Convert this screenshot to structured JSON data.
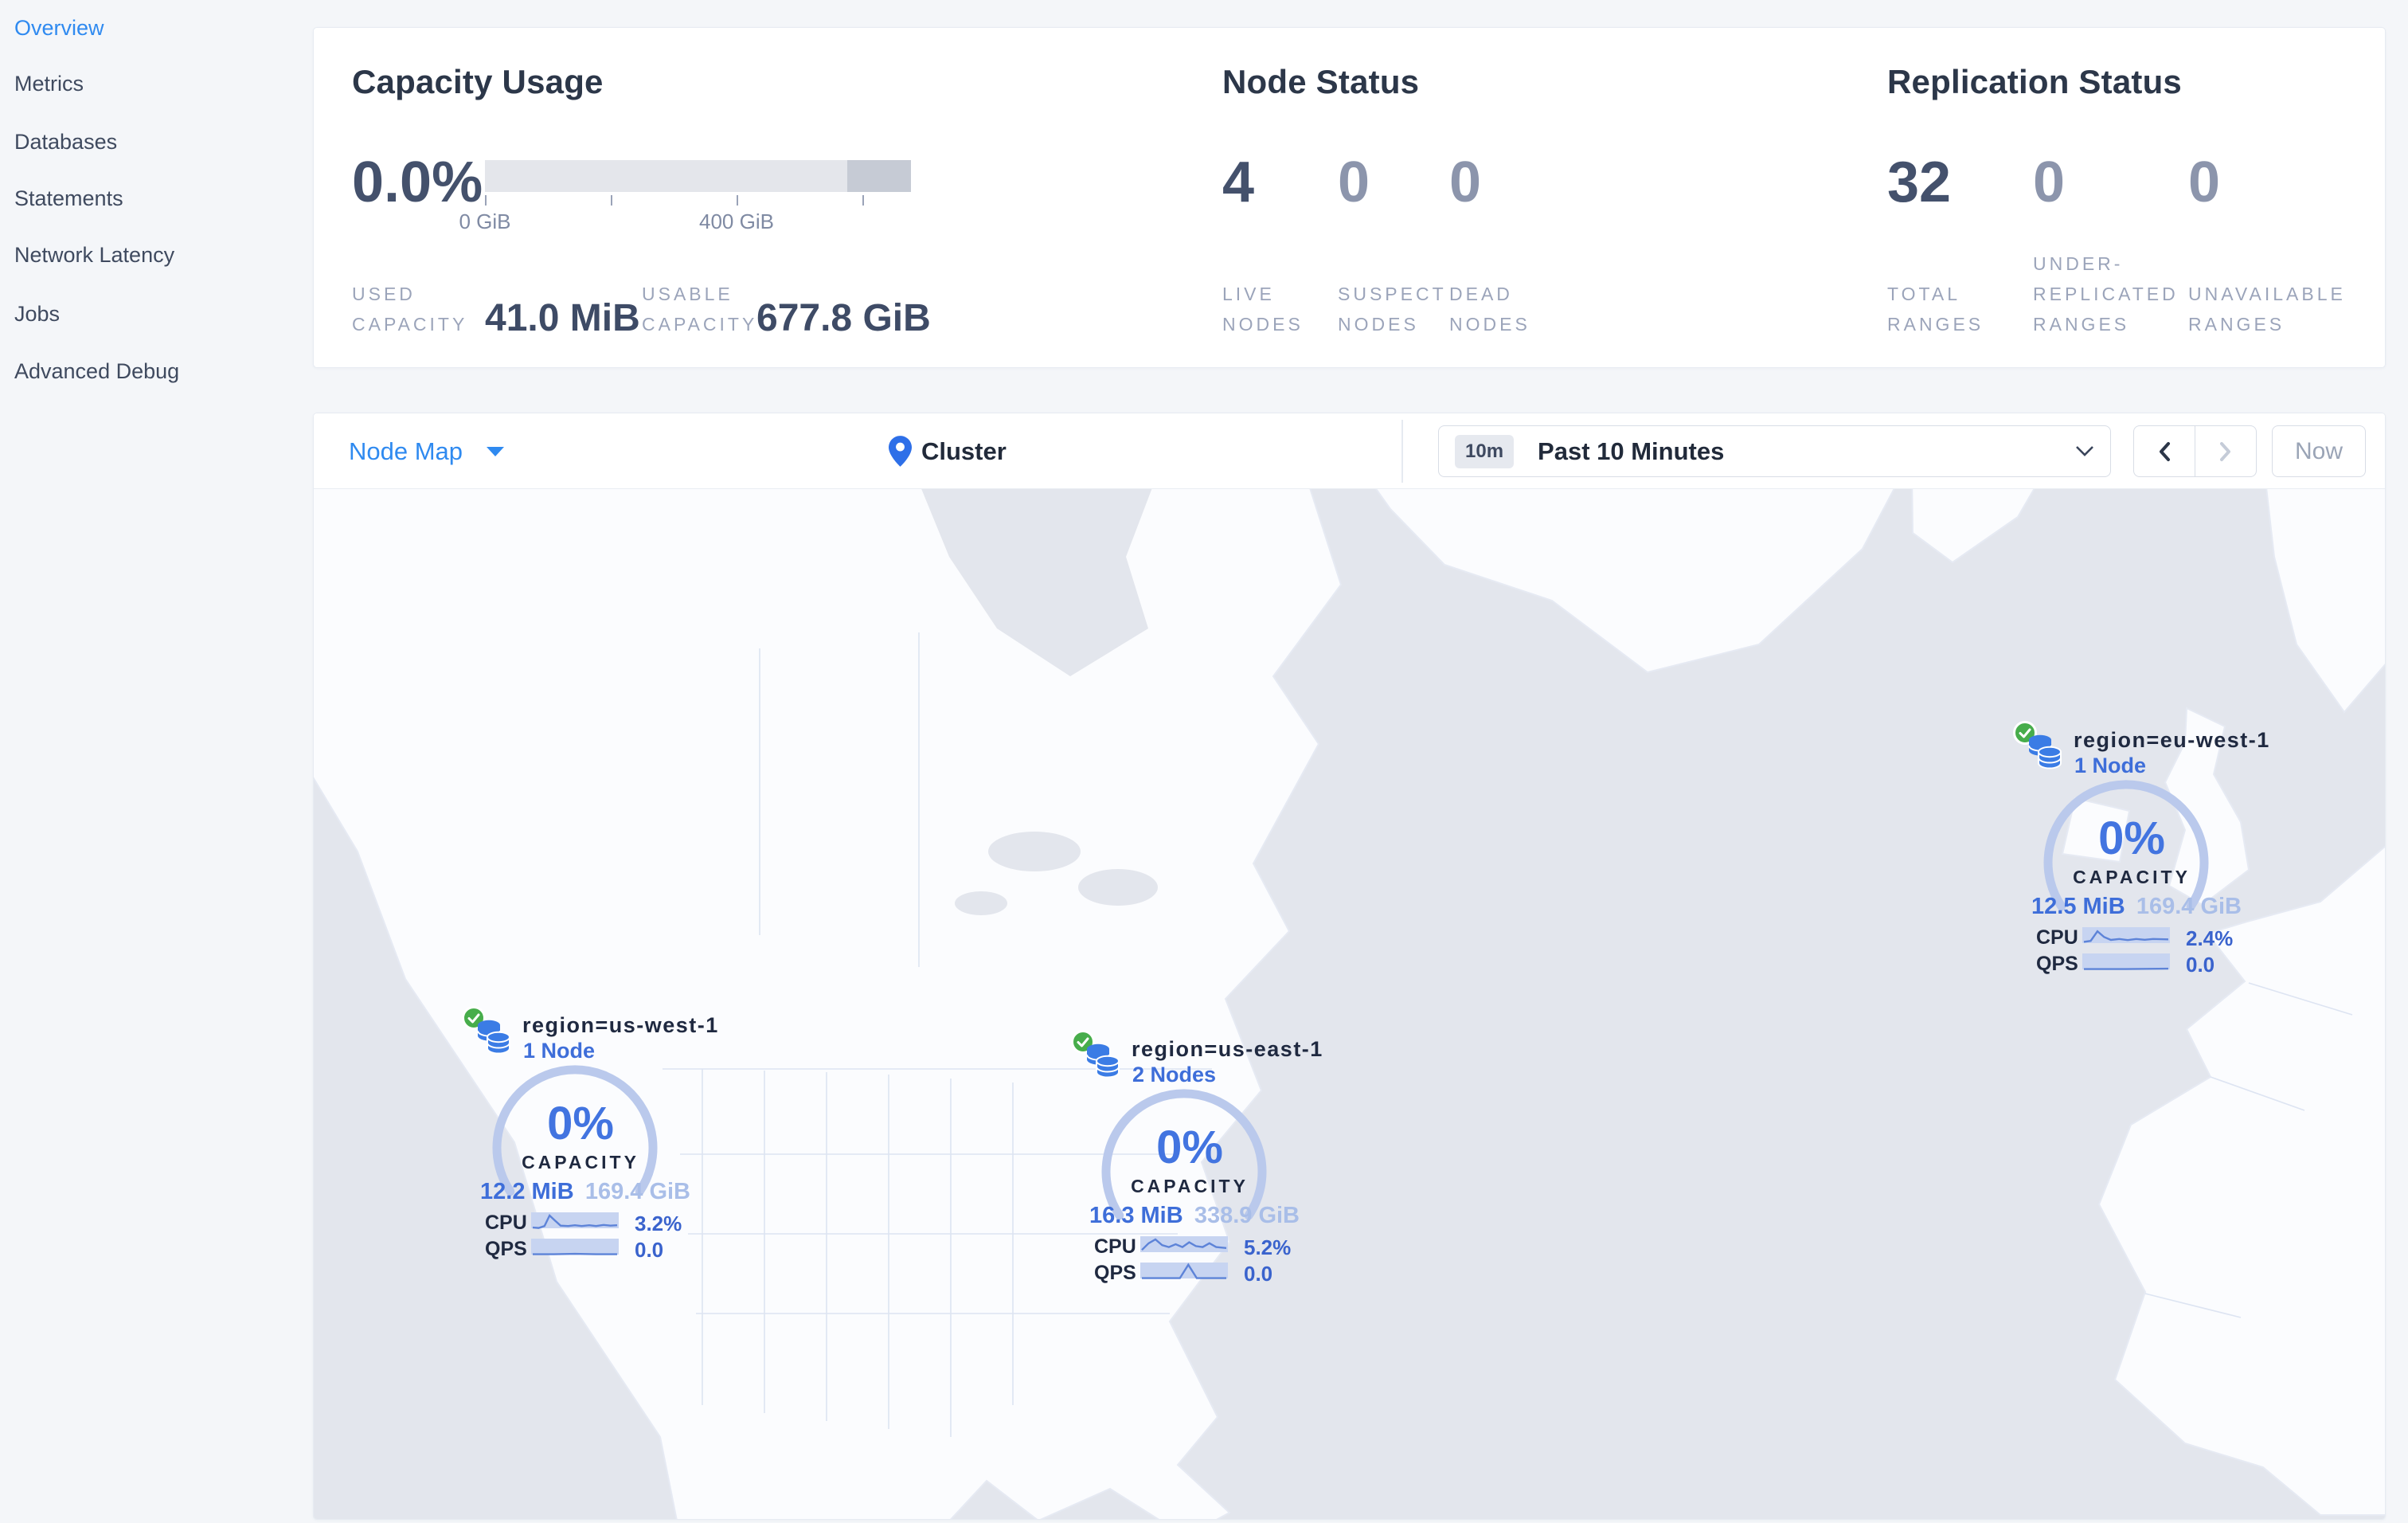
{
  "sidebar": {
    "items": [
      "Overview",
      "Metrics",
      "Databases",
      "Statements",
      "Network Latency",
      "Jobs",
      "Advanced Debug"
    ]
  },
  "stats": {
    "capacity": {
      "title": "Capacity Usage",
      "percent": "0.0%",
      "tick_low": "0 GiB",
      "tick_mid": "400 GiB",
      "used": {
        "l1": "USED",
        "l2": "CAPACITY",
        "value": "41.0 MiB"
      },
      "usable": {
        "l1": "USABLE",
        "l2": "CAPACITY",
        "value": "677.8 GiB"
      }
    },
    "nodes": {
      "title": "Node Status",
      "cols": [
        {
          "value": "4",
          "lines": [
            "LIVE",
            "NODES"
          ]
        },
        {
          "value": "0",
          "lines": [
            "SUSPECT",
            "NODES"
          ]
        },
        {
          "value": "0",
          "lines": [
            "DEAD",
            "NODES"
          ]
        }
      ]
    },
    "replication": {
      "title": "Replication Status",
      "cols": [
        {
          "value": "32",
          "lines": [
            "TOTAL",
            "RANGES"
          ]
        },
        {
          "value": "0",
          "lines": [
            "UNDER-",
            "REPLICATED",
            "RANGES"
          ]
        },
        {
          "value": "0",
          "lines": [
            "UNAVAILABLE",
            "RANGES"
          ]
        }
      ]
    }
  },
  "toolbar": {
    "view": "Node Map",
    "breadcrumb": "Cluster",
    "range_badge": "10m",
    "range_label": "Past 10 Minutes",
    "now": "Now"
  },
  "map": {
    "markers": [
      {
        "region": "region=us-west-1",
        "nodes": "1 Node",
        "percent": "0%",
        "capacity_label": "CAPACITY",
        "used": "12.2 MiB",
        "total": "169.4 GiB",
        "cpu_label": "CPU",
        "cpu_value": "3.2%",
        "qps_label": "QPS",
        "qps_value": "0.0",
        "cpu_spark": [
          [
            0,
            0.12
          ],
          [
            0.07,
            0.1
          ],
          [
            0.14,
            0.2
          ],
          [
            0.2,
            0.75
          ],
          [
            0.26,
            0.5
          ],
          [
            0.33,
            0.22
          ],
          [
            0.42,
            0.2
          ],
          [
            0.5,
            0.24
          ],
          [
            0.58,
            0.2
          ],
          [
            0.67,
            0.24
          ],
          [
            0.75,
            0.2
          ],
          [
            0.84,
            0.26
          ],
          [
            0.92,
            0.22
          ],
          [
            1,
            0.24
          ]
        ],
        "qps_spark": [
          [
            0,
            0.1
          ],
          [
            0.25,
            0.1
          ],
          [
            0.5,
            0.12
          ],
          [
            0.75,
            0.1
          ],
          [
            1,
            0.1
          ]
        ]
      },
      {
        "region": "region=us-east-1",
        "nodes": "2 Nodes",
        "percent": "0%",
        "capacity_label": "CAPACITY",
        "used": "16.3 MiB",
        "total": "338.9 GiB",
        "cpu_label": "CPU",
        "cpu_value": "5.2%",
        "qps_label": "QPS",
        "qps_value": "0.0",
        "cpu_spark": [
          [
            0,
            0.2
          ],
          [
            0.08,
            0.55
          ],
          [
            0.16,
            0.75
          ],
          [
            0.24,
            0.45
          ],
          [
            0.32,
            0.35
          ],
          [
            0.4,
            0.5
          ],
          [
            0.48,
            0.35
          ],
          [
            0.56,
            0.6
          ],
          [
            0.64,
            0.4
          ],
          [
            0.72,
            0.35
          ],
          [
            0.8,
            0.55
          ],
          [
            0.88,
            0.35
          ],
          [
            1,
            0.3
          ]
        ],
        "qps_spark": [
          [
            0,
            0.1
          ],
          [
            0.45,
            0.1
          ],
          [
            0.55,
            0.8
          ],
          [
            0.65,
            0.1
          ],
          [
            1,
            0.1
          ]
        ]
      },
      {
        "region": "region=eu-west-1",
        "nodes": "1 Node",
        "percent": "0%",
        "capacity_label": "CAPACITY",
        "used": "12.5 MiB",
        "total": "169.4 GiB",
        "cpu_label": "CPU",
        "cpu_value": "2.4%",
        "qps_label": "QPS",
        "qps_value": "0.0",
        "cpu_spark": [
          [
            0,
            0.15
          ],
          [
            0.08,
            0.2
          ],
          [
            0.16,
            0.7
          ],
          [
            0.24,
            0.4
          ],
          [
            0.32,
            0.25
          ],
          [
            0.42,
            0.3
          ],
          [
            0.52,
            0.24
          ],
          [
            0.62,
            0.3
          ],
          [
            0.72,
            0.26
          ],
          [
            0.82,
            0.3
          ],
          [
            1,
            0.28
          ]
        ],
        "qps_spark": [
          [
            0,
            0.1
          ],
          [
            0.5,
            0.1
          ],
          [
            1,
            0.12
          ]
        ]
      }
    ]
  },
  "colors": {
    "accent_blue": "#2f8af0",
    "marker_blue": "#3e6ed9",
    "gauge_arc": "#bac9ec",
    "status_green": "#47ad4b"
  }
}
